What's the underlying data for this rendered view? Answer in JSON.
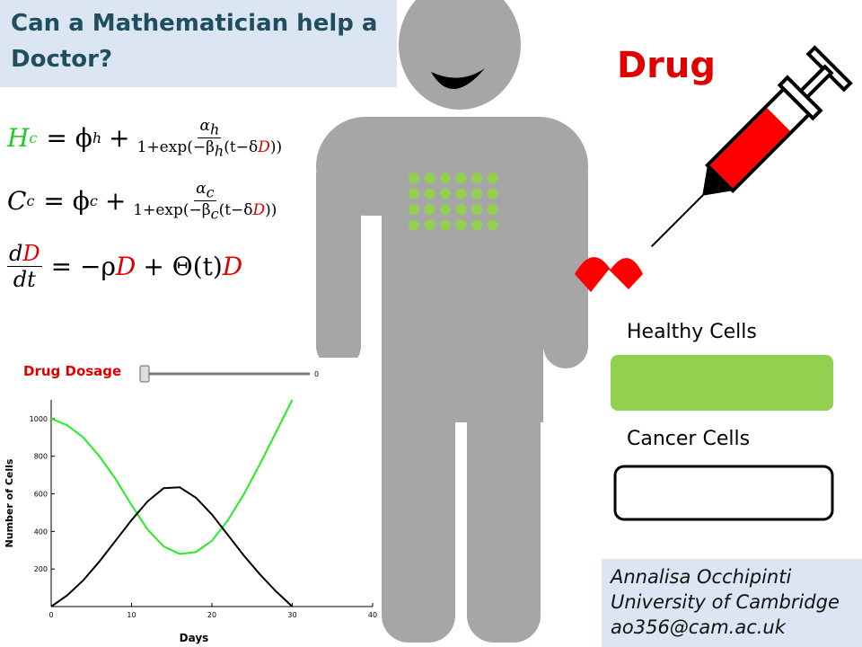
{
  "header": {
    "title": "Can a Mathematician help a Doctor?"
  },
  "drug_label": "Drug",
  "equations": [
    {
      "lhs": "H",
      "lhs_sub": "c",
      "op": "= ϕ",
      "op_sub": "h",
      "plus": "+",
      "num": "α",
      "num_sub": "h",
      "den_a": "1+exp(−β",
      "den_sub": "h",
      "den_b": "(t−δ",
      "den_var": "D",
      "den_c": "))"
    },
    {
      "lhs": "C",
      "lhs_sub": "c",
      "op": "= ϕ",
      "op_sub": "c",
      "plus": "+",
      "num": "α",
      "num_sub": "c",
      "den_a": "1+exp(−β",
      "den_sub": "c",
      "den_b": "(t−δ",
      "den_var": "D",
      "den_c": "))"
    },
    {
      "num_a": "d",
      "num_var": "D",
      "den": "dt",
      "op": "= −ρ",
      "var1": "D",
      "plus": "+ Θ(t)",
      "var2": "D"
    }
  ],
  "slider": {
    "label": "Drug Dosage",
    "value": 0
  },
  "legend": {
    "items": [
      {
        "label": "Healthy Cells",
        "color": "#92d050"
      },
      {
        "label": "Cancer Cells",
        "color": "#ffffff"
      }
    ]
  },
  "author": {
    "name": "Annalisa Occhipinti",
    "affiliation": "University of Cambridge",
    "email": "ao356@cam.ac.uk"
  },
  "chart_data": {
    "type": "line",
    "x_label": "Days",
    "y_label": "Number of Cells",
    "x": [
      0,
      2,
      4,
      6,
      8,
      10,
      12,
      14,
      16,
      18,
      20,
      22,
      24,
      26,
      28,
      30
    ],
    "series": [
      {
        "color": "#22ee22",
        "values": [
          1000,
          965,
          900,
          800,
          680,
          540,
          410,
          320,
          280,
          290,
          350,
          460,
          600,
          760,
          930,
          1100
        ]
      },
      {
        "color": "#000000",
        "values": [
          0,
          60,
          140,
          240,
          350,
          460,
          560,
          630,
          635,
          580,
          490,
          380,
          270,
          170,
          80,
          0
        ]
      }
    ],
    "xlim": [
      0,
      40
    ],
    "xticks": [
      0,
      10,
      20,
      30,
      40
    ],
    "ylim": [
      0,
      1100
    ],
    "yticks": [
      200,
      400,
      600,
      800,
      1000
    ]
  }
}
